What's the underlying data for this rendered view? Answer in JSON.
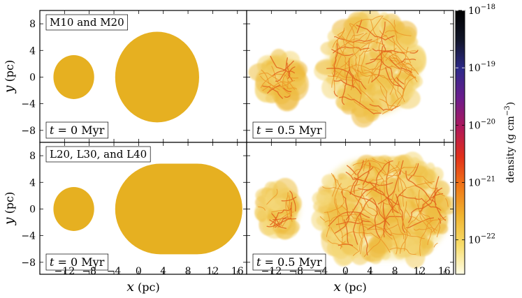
{
  "chart_data": {
    "type": "image-grid",
    "xlabel_var": "x",
    "xlabel_unit": "(pc)",
    "ylabel_var": "y",
    "ylabel_unit": "(pc)",
    "xlim": [
      -16,
      17.5
    ],
    "ylim": [
      -9.8,
      10
    ],
    "x_ticks": [
      -12,
      -8,
      -4,
      0,
      4,
      8,
      12,
      16
    ],
    "y_ticks": [
      8,
      4,
      0,
      -4,
      -8
    ],
    "time_var": "t",
    "colorbar": {
      "label_text": "density (g cm",
      "label_exp": "−3",
      "label_close": ")",
      "scale": "log",
      "range_log": [
        -22.6,
        -18
      ],
      "ticks": [
        {
          "log": -18,
          "mantissa": "10",
          "exp": "−18"
        },
        {
          "log": -19,
          "mantissa": "10",
          "exp": "−19"
        },
        {
          "log": -20,
          "mantissa": "10",
          "exp": "−20"
        },
        {
          "log": -21,
          "mantissa": "10",
          "exp": "−21"
        },
        {
          "log": -22,
          "mantissa": "10",
          "exp": "−22"
        }
      ],
      "colors": [
        "#fffde6",
        "#f7dc6a",
        "#f0b430",
        "#f07818",
        "#e2301a",
        "#b0185a",
        "#6c1c8c",
        "#2e2a8a",
        "#111528",
        "#000000"
      ]
    },
    "cloud_color": "#e6b021",
    "panels": [
      {
        "id": "top-left",
        "row": 0,
        "col": 0,
        "label": "M10 and M20",
        "time": "0 Myr",
        "kind": "initial",
        "small_cloud": {
          "cx": -10.5,
          "cy": 0,
          "r": 3.3
        },
        "large_cloud": {
          "shape": "circle",
          "cx": 3,
          "cy": 0,
          "r": 6.8
        }
      },
      {
        "id": "top-right",
        "row": 0,
        "col": 1,
        "label": "",
        "time": "0.5 Myr",
        "kind": "evolved",
        "small_cloud": {
          "cx": -10.8,
          "cy": 0,
          "r": 3.4
        },
        "large_cloud": {
          "shape": "circle",
          "cx": 4.5,
          "cy": 1.8,
          "r": 7.6
        }
      },
      {
        "id": "bottom-left",
        "row": 1,
        "col": 0,
        "label": "L20, L30, and L40",
        "time": "0 Myr",
        "kind": "initial",
        "small_cloud": {
          "cx": -10.5,
          "cy": 0,
          "r": 3.3
        },
        "large_cloud": {
          "shape": "stadium",
          "x0": -3.8,
          "x1": 16.8,
          "y0": -6.8,
          "y1": 6.8
        }
      },
      {
        "id": "bottom-right",
        "row": 1,
        "col": 1,
        "label": "",
        "time": "0.5 Myr",
        "kind": "evolved",
        "small_cloud": {
          "cx": -10.8,
          "cy": 0,
          "r": 3.4
        },
        "large_cloud": {
          "shape": "stadium",
          "x0": -4.5,
          "x1": 17,
          "y0": -7.6,
          "y1": 7.6
        }
      }
    ]
  }
}
